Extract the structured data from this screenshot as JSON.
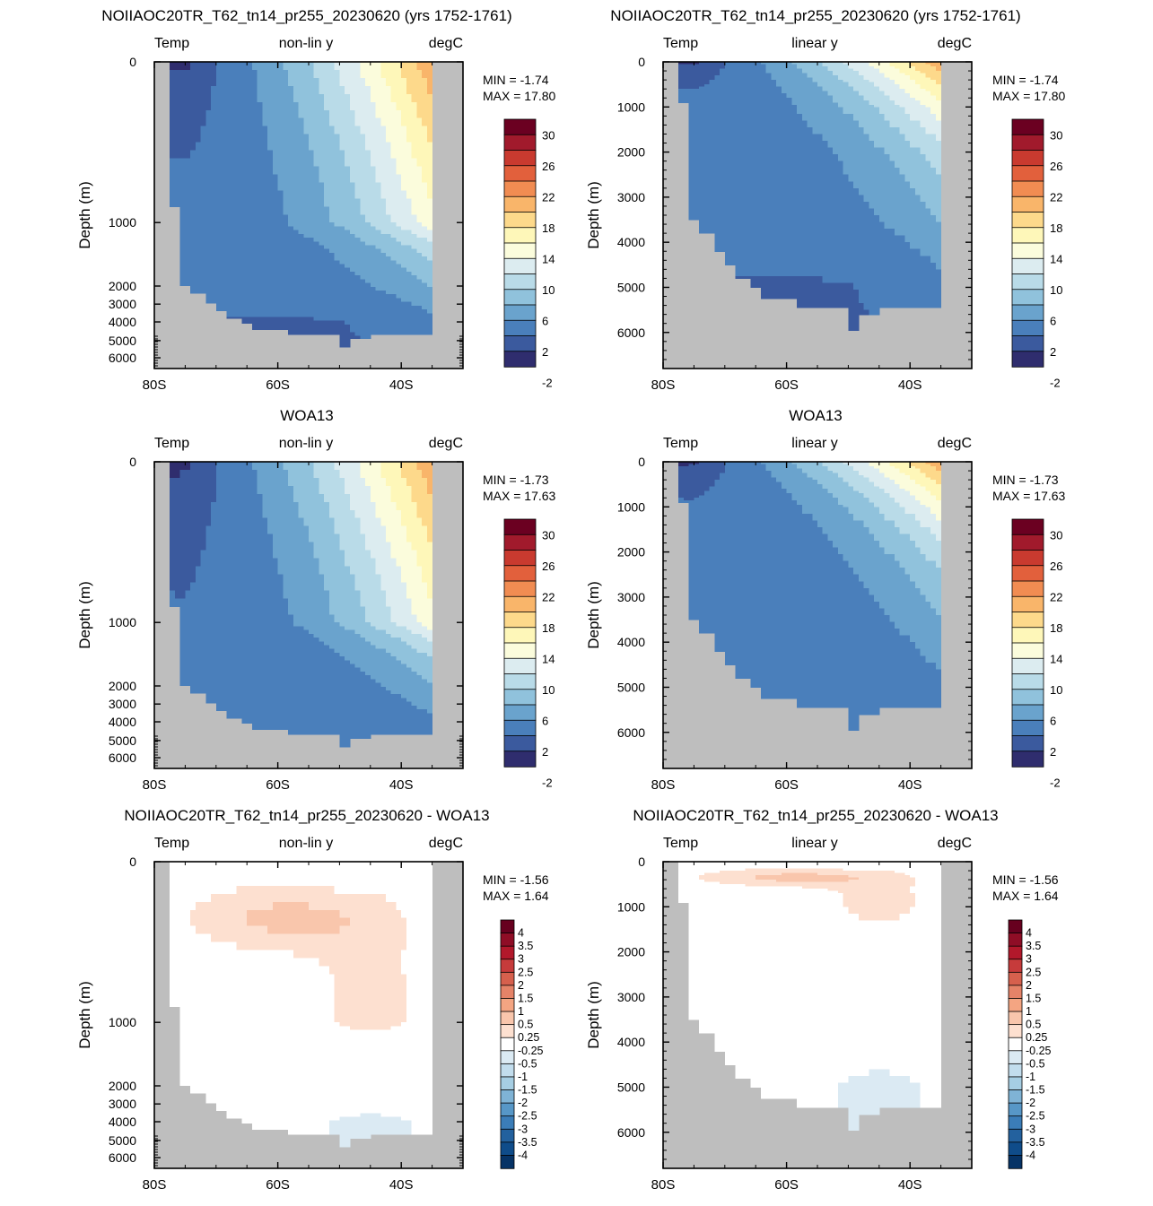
{
  "figure": {
    "panel_titles": {
      "model": "NOIIAOC20TR_T62_tn14_pr255_20230620 (yrs 1752-1761)",
      "obs": "WOA13",
      "diff": "NOIIAOC20TR_T62_tn14_pr255_20230620 - WOA13"
    },
    "left_label": "Temp",
    "right_label": "degC",
    "mode_labels": {
      "nonlin": "non-lin y",
      "linear": "linear y"
    },
    "ylabel": "Depth (m)",
    "xticks": [
      "80S",
      "60S",
      "40S"
    ],
    "yticks_nonlin": [
      "0",
      "1000",
      "2000",
      "3000",
      "4000",
      "5000",
      "6000"
    ],
    "yticks_linear": [
      "0",
      "1000",
      "2000",
      "3000",
      "4000",
      "5000",
      "6000"
    ],
    "temp_colorbar_labels": [
      "30",
      "26",
      "22",
      "18",
      "14",
      "10",
      "6",
      "2",
      "-2"
    ],
    "diff_colorbar_labels": [
      "4",
      "3.5",
      "3",
      "2.5",
      "2",
      "1.5",
      "1",
      "0.5",
      "0.25",
      "-0.25",
      "-0.5",
      "-1",
      "-1.5",
      "-2",
      "-2.5",
      "-3",
      "-3.5",
      "-4"
    ],
    "temp_colors": [
      "#6b0021",
      "#a11a2c",
      "#c93a2f",
      "#e2603c",
      "#f18c52",
      "#f9b56a",
      "#fdd98b",
      "#fef7b9",
      "#fbfcdc",
      "#dcecf0",
      "#b9dbe8",
      "#90c2dc",
      "#6aa3cd",
      "#4a7fbb",
      "#3b5a9e",
      "#2f2d6e"
    ],
    "diff_colors": [
      "#67001f",
      "#8f0d26",
      "#b2182b",
      "#c63b3b",
      "#d6604d",
      "#e58368",
      "#f4a582",
      "#f9c6ac",
      "#fde0d0",
      "#ffffff",
      "#dbeaf3",
      "#c2dded",
      "#a6cee3",
      "#7fb3d5",
      "#5797c7",
      "#3b7db8",
      "#23619e",
      "#0f4c8a",
      "#063366"
    ],
    "land_color": "#bebebe"
  },
  "chart_data": [
    {
      "type": "heatmap",
      "panel": "top-left",
      "title": "NOIIAOC20TR_T62_tn14_pr255_20230620 (yrs 1752-1761)",
      "variable": "Temp",
      "units": "degC",
      "yaxis": "non-lin y",
      "xlabel": "",
      "ylabel": "Depth (m)",
      "xlim": [
        "80S",
        "30S"
      ],
      "ylim": [
        0,
        6800
      ],
      "stats": {
        "min_label": "MIN =",
        "min": "-1.74",
        "max_label": "MAX =",
        "max": "17.80"
      },
      "contour_levels": [
        -2,
        0,
        2,
        4,
        6,
        8,
        10,
        12,
        14,
        16,
        18,
        20,
        22,
        24,
        26,
        28,
        30
      ]
    },
    {
      "type": "heatmap",
      "panel": "top-right",
      "title": "NOIIAOC20TR_T62_tn14_pr255_20230620 (yrs 1752-1761)",
      "variable": "Temp",
      "units": "degC",
      "yaxis": "linear y",
      "xlabel": "",
      "ylabel": "Depth (m)",
      "xlim": [
        "80S",
        "30S"
      ],
      "ylim": [
        0,
        6800
      ],
      "stats": {
        "min_label": "MIN =",
        "min": "-1.74",
        "max_label": "MAX =",
        "max": "17.80"
      },
      "contour_levels": [
        -2,
        0,
        2,
        4,
        6,
        8,
        10,
        12,
        14,
        16,
        18,
        20,
        22,
        24,
        26,
        28,
        30
      ]
    },
    {
      "type": "heatmap",
      "panel": "middle-left",
      "title": "WOA13",
      "variable": "Temp",
      "units": "degC",
      "yaxis": "non-lin y",
      "xlabel": "",
      "ylabel": "Depth (m)",
      "xlim": [
        "80S",
        "30S"
      ],
      "ylim": [
        0,
        6800
      ],
      "stats": {
        "min_label": "MIN =",
        "min": "-1.73",
        "max_label": "MAX =",
        "max": "17.63"
      },
      "contour_levels": [
        -2,
        0,
        2,
        4,
        6,
        8,
        10,
        12,
        14,
        16,
        18,
        20,
        22,
        24,
        26,
        28,
        30
      ]
    },
    {
      "type": "heatmap",
      "panel": "middle-right",
      "title": "WOA13",
      "variable": "Temp",
      "units": "degC",
      "yaxis": "linear y",
      "xlabel": "",
      "ylabel": "Depth (m)",
      "xlim": [
        "80S",
        "30S"
      ],
      "ylim": [
        0,
        6800
      ],
      "stats": {
        "min_label": "MIN =",
        "min": "-1.73",
        "max_label": "MAX =",
        "max": "17.63"
      },
      "contour_levels": [
        -2,
        0,
        2,
        4,
        6,
        8,
        10,
        12,
        14,
        16,
        18,
        20,
        22,
        24,
        26,
        28,
        30
      ]
    },
    {
      "type": "heatmap",
      "panel": "bottom-left",
      "title": "NOIIAOC20TR_T62_tn14_pr255_20230620 - WOA13",
      "variable": "Temp",
      "units": "degC",
      "yaxis": "non-lin y",
      "xlabel": "",
      "ylabel": "Depth (m)",
      "xlim": [
        "80S",
        "30S"
      ],
      "ylim": [
        0,
        6800
      ],
      "stats": {
        "min_label": "MIN =",
        "min": "-1.56",
        "max_label": "MAX =",
        "max": "1.64"
      },
      "contour_levels": [
        -4,
        -3.5,
        -3,
        -2.5,
        -2,
        -1.5,
        -1,
        -0.5,
        -0.25,
        0.25,
        0.5,
        1,
        1.5,
        2,
        2.5,
        3,
        3.5,
        4
      ]
    },
    {
      "type": "heatmap",
      "panel": "bottom-right",
      "title": "NOIIAOC20TR_T62_tn14_pr255_20230620 - WOA13",
      "variable": "Temp",
      "units": "degC",
      "yaxis": "linear y",
      "xlabel": "",
      "ylabel": "Depth (m)",
      "xlim": [
        "80S",
        "30S"
      ],
      "ylim": [
        0,
        6800
      ],
      "stats": {
        "min_label": "MIN =",
        "min": "-1.56",
        "max_label": "MAX =",
        "max": "1.64"
      },
      "contour_levels": [
        -4,
        -3.5,
        -3,
        -2.5,
        -2,
        -1.5,
        -1,
        -0.5,
        -0.25,
        0.25,
        0.5,
        1,
        1.5,
        2,
        2.5,
        3,
        3.5,
        4
      ]
    }
  ]
}
